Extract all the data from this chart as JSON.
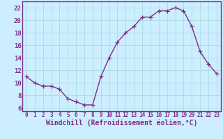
{
  "x": [
    0,
    1,
    2,
    3,
    4,
    5,
    6,
    7,
    8,
    9,
    10,
    11,
    12,
    13,
    14,
    15,
    16,
    17,
    18,
    19,
    20,
    21,
    22,
    23
  ],
  "y": [
    11,
    10,
    9.5,
    9.5,
    9,
    7.5,
    7,
    6.5,
    6.5,
    11,
    14,
    16.5,
    18,
    19,
    20.5,
    20.5,
    21.5,
    21.5,
    22,
    21.5,
    19,
    15,
    13,
    11.5
  ],
  "line_color": "#7b2d8b",
  "marker": "+",
  "markersize": 4,
  "linewidth": 1.0,
  "bg_color": "#cceeff",
  "grid_color": "#aadddd",
  "xlabel": "Windchill (Refroidissement éolien,°C)",
  "xlabel_fontsize": 7,
  "ylabel_ticks": [
    6,
    8,
    10,
    12,
    14,
    16,
    18,
    20,
    22
  ],
  "ylim": [
    5.5,
    23.0
  ],
  "xlim": [
    -0.5,
    23.5
  ],
  "xticks": [
    0,
    1,
    2,
    3,
    4,
    5,
    6,
    7,
    8,
    9,
    10,
    11,
    12,
    13,
    14,
    15,
    16,
    17,
    18,
    19,
    20,
    21,
    22,
    23
  ],
  "xtick_fontsize": 5.5,
  "ytick_fontsize": 6.5,
  "tick_color": "#7b2d8b",
  "spine_color": "#7b2d8b",
  "spine_linewidth": 1.0
}
